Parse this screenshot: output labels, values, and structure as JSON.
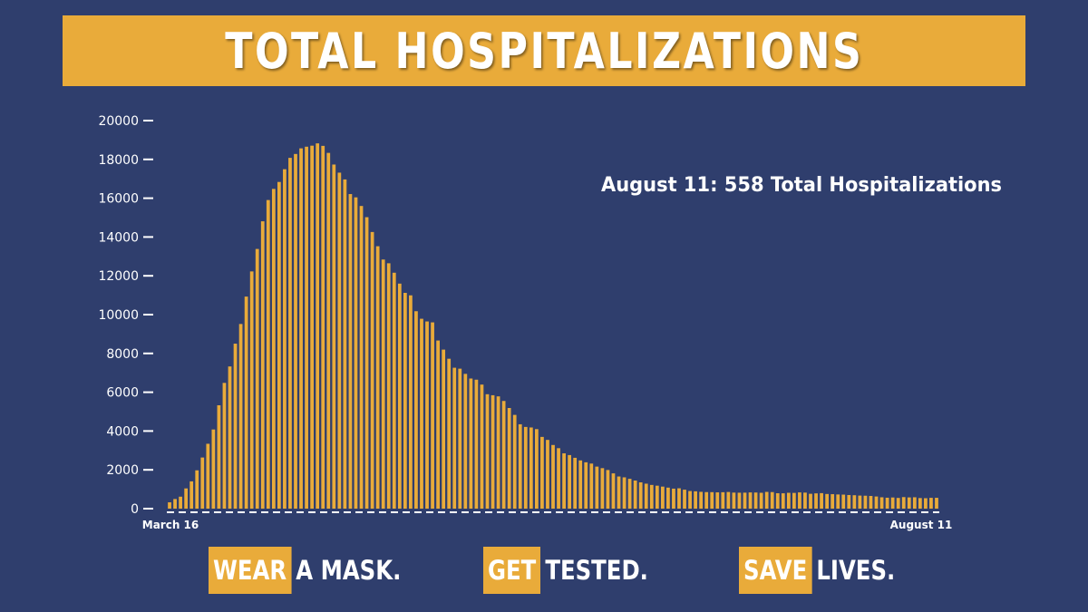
{
  "header": {
    "title": "TOTAL HOSPITALIZATIONS"
  },
  "colors": {
    "background": "#2f3e6d",
    "accent": "#e9ab3a",
    "text": "#ffffff"
  },
  "annotation": "August 11: 558 Total Hospitalizations",
  "footer": {
    "slogans": [
      {
        "highlight": "WEAR",
        "rest": "A MASK."
      },
      {
        "highlight": "GET",
        "rest": "TESTED."
      },
      {
        "highlight": "SAVE",
        "rest": "LIVES."
      }
    ]
  },
  "chart_data": {
    "type": "bar",
    "title": "TOTAL HOSPITALIZATIONS",
    "xlabel": "",
    "ylabel": "",
    "ylim": [
      0,
      20000
    ],
    "yticks": [
      0,
      2000,
      4000,
      6000,
      8000,
      10000,
      12000,
      14000,
      16000,
      18000,
      20000
    ],
    "x_tick_labels": [
      "March 16",
      "August 11"
    ],
    "grid": false,
    "series": [
      {
        "values": [
          326,
          496,
          617,
          1042,
          1406,
          1974,
          2635,
          3343,
          4079,
          5327,
          6481,
          7328,
          8503,
          9517,
          10929,
          12226,
          13383,
          14810,
          15905,
          16479,
          16837,
          17493,
          18079,
          18279,
          18569,
          18654,
          18707,
          18825,
          18697,
          18335,
          17735,
          17316,
          16967,
          16213,
          16044,
          15599,
          15021,
          14258,
          13524,
          12839,
          12646,
          12159,
          11598,
          11121,
          10993,
          10175,
          9786,
          9647,
          9600,
          8665,
          8196,
          7726,
          7262,
          7214,
          6946,
          6706,
          6646,
          6394,
          5897,
          5845,
          5786,
          5550,
          5187,
          4832,
          4348,
          4211,
          4183,
          4098,
          3697,
          3543,
          3281,
          3116,
          2851,
          2761,
          2620,
          2486,
          2389,
          2323,
          2167,
          2087,
          1992,
          1818,
          1657,
          1613,
          1538,
          1448,
          1355,
          1287,
          1222,
          1183,
          1136,
          1083,
          1031,
          1049,
          977,
          908,
          893,
          866,
          853,
          850,
          839,
          846,
          858,
          827,
          821,
          824,
          836,
          831,
          817,
          863,
          853,
          794,
          791,
          817,
          811,
          837,
          826,
          765,
          787,
          799,
          755,
          746,
          731,
          723,
          702,
          691,
          673,
          666,
          653,
          626,
          585,
          563,
          575,
          552,
          595,
          578,
          586,
          545,
          538,
          557,
          558
        ]
      }
    ]
  }
}
